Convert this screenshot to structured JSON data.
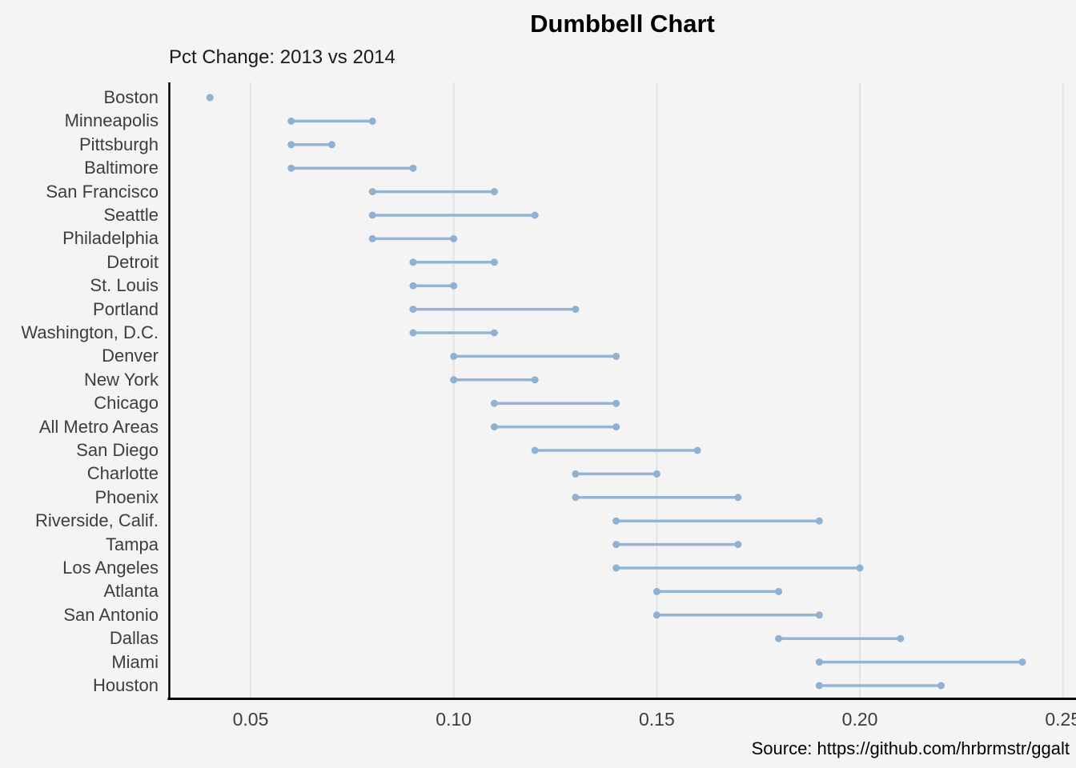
{
  "chart_data": {
    "type": "dumbbell",
    "title": "Dumbbell Chart",
    "subtitle": "Pct Change: 2013 vs 2014",
    "caption": "Source: https://github.com/hrbrmstr/ggalt",
    "categories": [
      "Boston",
      "Minneapolis",
      "Pittsburgh",
      "Baltimore",
      "San Francisco",
      "Seattle",
      "Philadelphia",
      "Detroit",
      "St. Louis",
      "Portland",
      "Washington, D.C.",
      "Denver",
      "New York",
      "Chicago",
      "All Metro Areas",
      "San Diego",
      "Charlotte",
      "Phoenix",
      "Riverside, Calif.",
      "Tampa",
      "Los Angeles",
      "Atlanta",
      "San Antonio",
      "Dallas",
      "Miami",
      "Houston"
    ],
    "series": [
      {
        "name": "2013",
        "values": [
          0.04,
          0.06,
          0.06,
          0.06,
          0.08,
          0.08,
          0.08,
          0.09,
          0.09,
          0.09,
          0.09,
          0.1,
          0.1,
          0.11,
          0.11,
          0.12,
          0.13,
          0.13,
          0.14,
          0.14,
          0.14,
          0.15,
          0.15,
          0.18,
          0.19,
          0.19
        ]
      },
      {
        "name": "2014",
        "values": [
          0.04,
          0.08,
          0.07,
          0.09,
          0.11,
          0.12,
          0.1,
          0.11,
          0.1,
          0.13,
          0.11,
          0.14,
          0.12,
          0.14,
          0.14,
          0.16,
          0.15,
          0.17,
          0.19,
          0.17,
          0.2,
          0.18,
          0.19,
          0.21,
          0.24,
          0.22
        ]
      }
    ],
    "x_ticks": {
      "values": [
        0.05,
        0.1,
        0.15,
        0.2,
        0.25
      ],
      "labels": [
        "0.05",
        "0.10",
        "0.15",
        "0.20",
        "0.25"
      ]
    },
    "xlim": [
      0.0299,
      0.2532
    ],
    "grid": "vertical-only",
    "legend": "none",
    "colors": {
      "background": "#f4f4f4",
      "gridline": "#e3e3e3",
      "axis_line": "#000000",
      "dumbbell_line": "#94b5d6",
      "dumbbell_point": "#8eb1d4",
      "axis_text": "#3d3d3d",
      "title_text": "#000000"
    }
  }
}
